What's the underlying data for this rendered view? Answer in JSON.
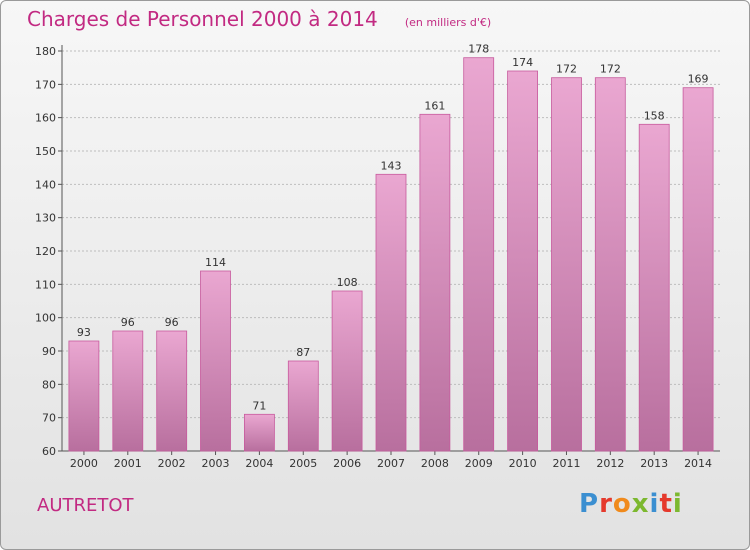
{
  "header": {
    "title": "Charges de Personnel 2000 à 2014",
    "unit": "(en milliers d'€)"
  },
  "footer": {
    "commune": "AUTRETOT",
    "logo_letters": [
      "P",
      "r",
      "o",
      "x",
      "i",
      "t",
      "i"
    ],
    "logo_colors": [
      "#3b8fd1",
      "#e5392c",
      "#f08a1c",
      "#7cb82f",
      "#3b8fd1",
      "#e5392c",
      "#7cb82f"
    ]
  },
  "colors": {
    "accent": "#c22a82",
    "bar_top": "#eaa7d1",
    "bar_bottom": "#b86f9e",
    "bar_stroke": "#c75a9d",
    "grid": "#bdbdbd"
  },
  "chart_data": {
    "type": "bar",
    "title": "Charges de Personnel 2000 à 2014",
    "subtitle": "(en milliers d'€)",
    "categories": [
      "2000",
      "2001",
      "2002",
      "2003",
      "2004",
      "2005",
      "2006",
      "2007",
      "2008",
      "2009",
      "2010",
      "2011",
      "2012",
      "2013",
      "2014"
    ],
    "values": [
      93,
      96,
      96,
      114,
      71,
      87,
      108,
      143,
      161,
      178,
      174,
      172,
      172,
      158,
      169
    ],
    "ylim": [
      60,
      180
    ],
    "yticks": [
      60,
      70,
      80,
      90,
      100,
      110,
      120,
      130,
      140,
      150,
      160,
      170,
      180
    ],
    "grid": true,
    "legend": "none"
  }
}
